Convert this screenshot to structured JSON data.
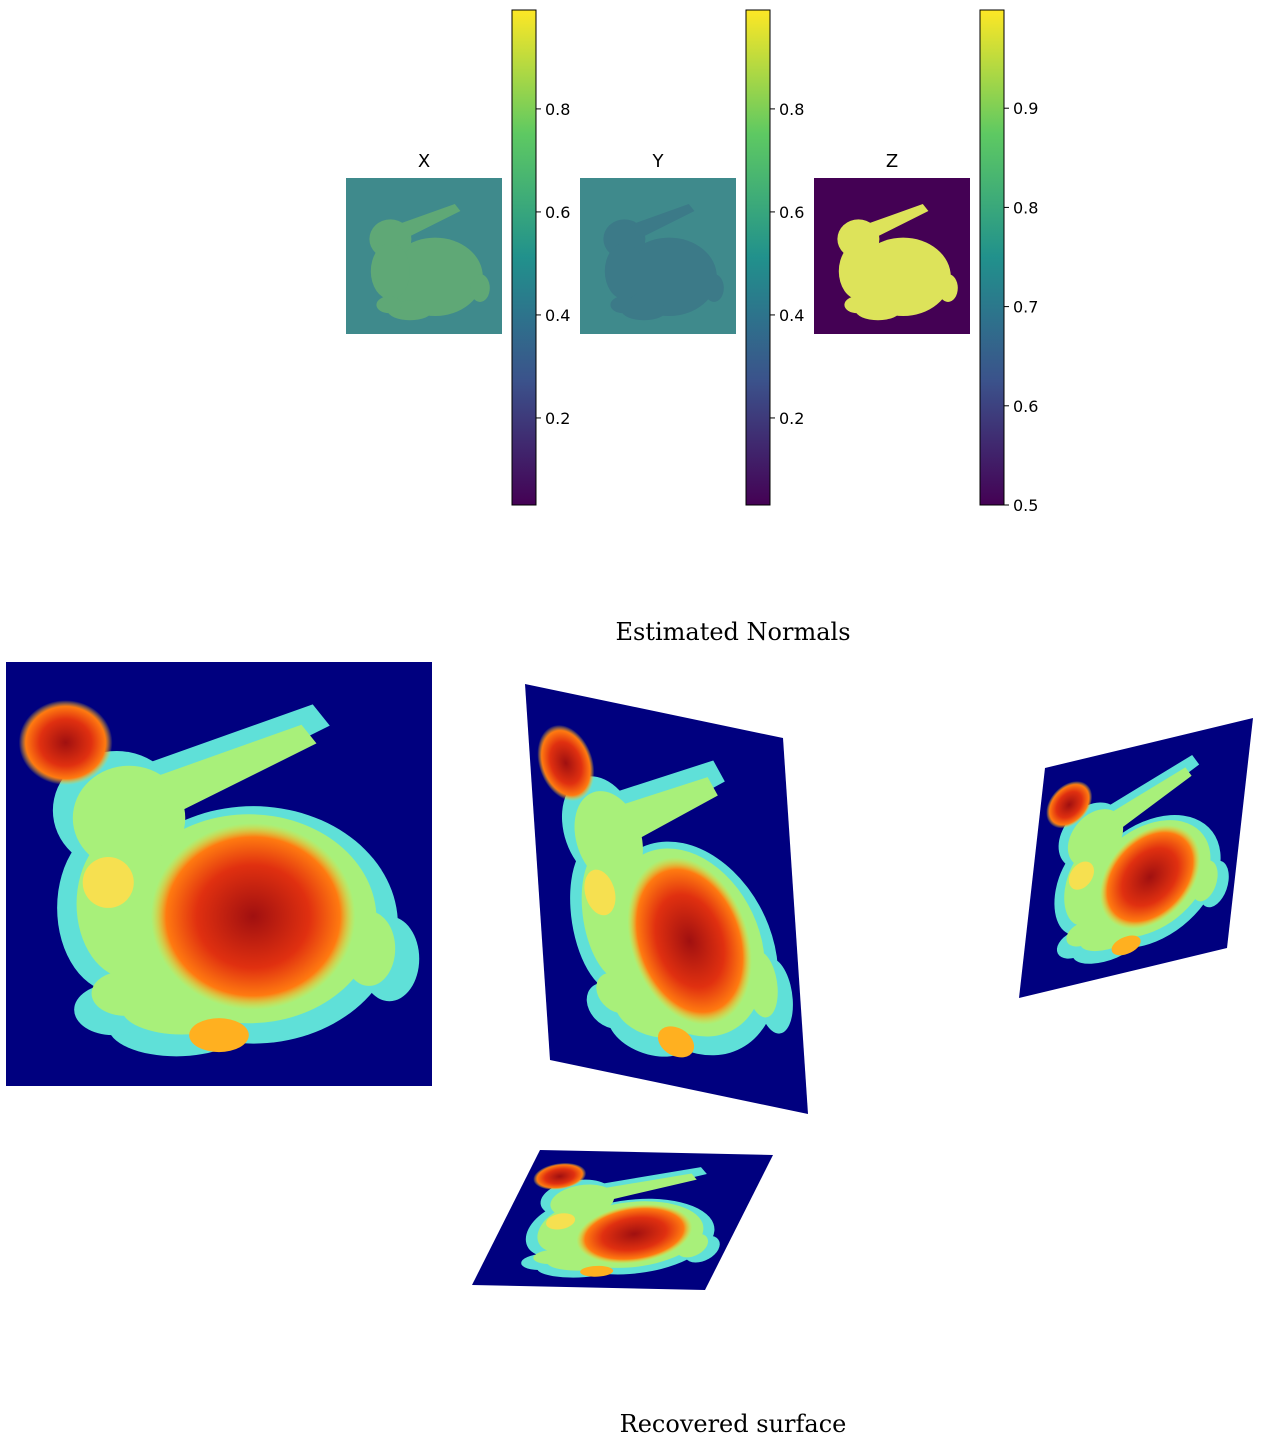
{
  "figure": {
    "panels": [
      {
        "title": "X",
        "colorbar": {
          "lim": [
            0.031,
            0.992
          ],
          "ticks": [
            0.2,
            0.4,
            0.6,
            0.8
          ]
        }
      },
      {
        "title": "Y",
        "colorbar": {
          "lim": [
            0.031,
            0.992
          ],
          "ticks": [
            0.2,
            0.4,
            0.6,
            0.8
          ]
        }
      },
      {
        "title": "Z",
        "colorbar": {
          "lim": [
            0.5,
            0.999
          ],
          "ticks": [
            0.5,
            0.6,
            0.7,
            0.8,
            0.9
          ]
        }
      }
    ],
    "caption_top": "Estimated Normals",
    "caption_bottom": "Recovered surface"
  }
}
